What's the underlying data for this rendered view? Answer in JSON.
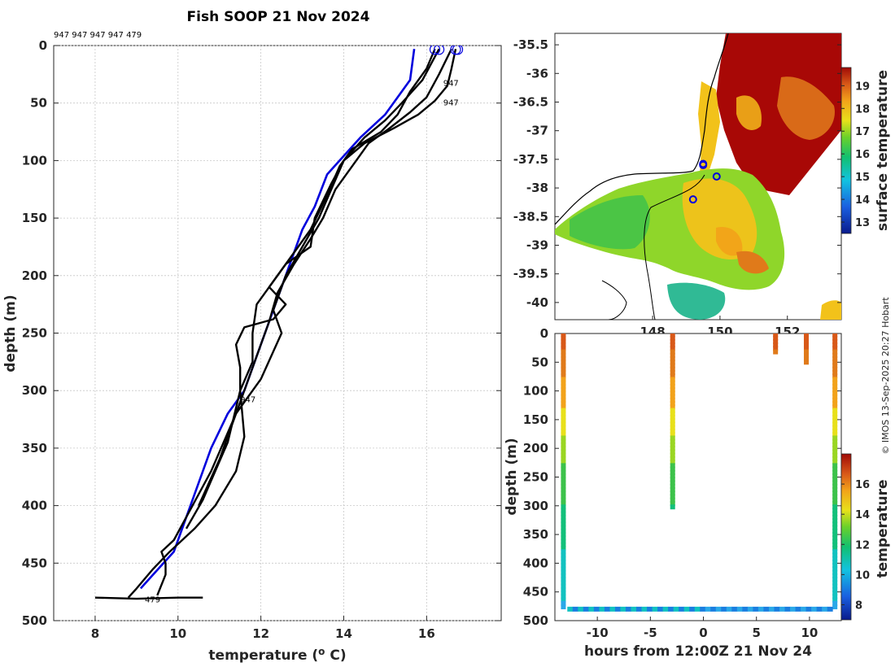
{
  "title": "Fish SOOP 21 Nov 2024",
  "credit": "© IMOS 13-Sep-2025 20:27 Hobart",
  "colors": {
    "climatology": "#0000dd",
    "profile": "#000000"
  },
  "chart_data": [
    {
      "id": "profiles",
      "type": "line",
      "header_label": "947 947 947 947 479",
      "xlabel": "temperature (o C)",
      "ylabel": "depth (m)",
      "xlim": [
        7,
        17.8
      ],
      "ylim": [
        500,
        0
      ],
      "x_ticks": [
        8,
        10,
        12,
        14,
        16
      ],
      "y_ticks": [
        0,
        50,
        100,
        150,
        200,
        250,
        300,
        350,
        400,
        450,
        500
      ],
      "grid": true,
      "annotations": [
        {
          "text": "947",
          "x": 16.4,
          "y": 35
        },
        {
          "text": "947",
          "x": 16.4,
          "y": 52
        },
        {
          "text": "947",
          "x": 11.5,
          "y": 310
        },
        {
          "text": "479",
          "x": 9.2,
          "y": 484
        }
      ],
      "series": [
        {
          "name": "climatology",
          "color": "#0000dd",
          "x": [
            15.7,
            15.6,
            15.0,
            14.4,
            13.9,
            13.6,
            13.3,
            13.0,
            12.6,
            12.3,
            11.9,
            11.6,
            11.2,
            10.8,
            10.3,
            9.9,
            9.4,
            9.1
          ],
          "y": [
            3,
            30,
            60,
            80,
            100,
            112,
            140,
            160,
            200,
            230,
            270,
            300,
            320,
            350,
            400,
            440,
            460,
            472
          ]
        },
        {
          "name": "xbt-1",
          "color": "#000000",
          "x": [
            16.7,
            16.6,
            16.5,
            16.2,
            15.8,
            15.2,
            14.5,
            14.0,
            13.7,
            13.3,
            13.2,
            12.6,
            12.2,
            12.6,
            12.3,
            11.6,
            11.4,
            11.5,
            11.5,
            11.6,
            11.4,
            10.9,
            10.4,
            9.8,
            9.4,
            9.0,
            8.8
          ],
          "y": [
            3,
            20,
            35,
            48,
            60,
            72,
            85,
            100,
            120,
            150,
            175,
            190,
            210,
            225,
            238,
            245,
            260,
            280,
            300,
            340,
            370,
            400,
            420,
            440,
            455,
            472,
            480
          ]
        },
        {
          "name": "xbt-2",
          "color": "#000000",
          "x": [
            16.2,
            16.0,
            15.6,
            15.3,
            14.9,
            14.2,
            13.9,
            13.6,
            13.2,
            12.8,
            12.3,
            11.9,
            11.8,
            11.8,
            11.5,
            11.2,
            10.6,
            10.2
          ],
          "y": [
            3,
            20,
            40,
            60,
            75,
            90,
            105,
            130,
            160,
            180,
            205,
            225,
            250,
            275,
            300,
            345,
            395,
            420
          ]
        },
        {
          "name": "xbt-3",
          "color": "#000000",
          "x": [
            16.3,
            15.9,
            15.4,
            15.0,
            14.5,
            14.0,
            13.7,
            13.4,
            13.0,
            12.6,
            12.3,
            12.5,
            12.0,
            11.4,
            11.0,
            10.5
          ],
          "y": [
            3,
            30,
            50,
            65,
            80,
            100,
            125,
            150,
            175,
            200,
            230,
            250,
            290,
            320,
            360,
            400
          ]
        },
        {
          "name": "xbt-4",
          "color": "#000000",
          "x": [
            16.6,
            16.3,
            16.0,
            15.6,
            15.1,
            14.6,
            14.3,
            13.8,
            13.5,
            13.2,
            12.8,
            12.4,
            12.2,
            11.9,
            11.4,
            10.8,
            10.2,
            9.9,
            9.6,
            9.7,
            9.7,
            9.5
          ],
          "y": [
            3,
            25,
            45,
            58,
            72,
            85,
            100,
            125,
            150,
            168,
            190,
            215,
            240,
            270,
            320,
            370,
            410,
            430,
            440,
            450,
            460,
            478
          ]
        },
        {
          "name": "bottom-spread",
          "color": "#000000",
          "x": [
            8.0,
            9.0,
            10.0,
            10.6
          ],
          "y": [
            480,
            481,
            480,
            480
          ]
        }
      ],
      "markers": {
        "shape": "circle",
        "color": "#0000dd",
        "x": [
          16.2,
          16.3,
          16.7,
          16.75
        ],
        "y": [
          2,
          2,
          2,
          2
        ]
      }
    },
    {
      "id": "sst-map",
      "type": "heatmap",
      "xlim": [
        145.1,
        153.6
      ],
      "ylim": [
        -40.3,
        -35.3
      ],
      "x_ticks": [
        148,
        150,
        152
      ],
      "y_ticks": [
        -35.5,
        -36,
        -36.5,
        -37,
        -37.5,
        -38,
        -38.5,
        -39,
        -39.5,
        -40
      ],
      "colorbar_label": "surface temperature",
      "colorbar_ticks": [
        13,
        14,
        15,
        16,
        17,
        18,
        19
      ],
      "colorbar_range": [
        12.5,
        19.8
      ],
      "stations": {
        "lon": [
          149.5,
          149.9,
          149.2,
          149.5
        ],
        "lat": [
          -37.6,
          -37.8,
          -38.2,
          -37.58
        ]
      }
    },
    {
      "id": "section",
      "type": "scatter",
      "xlabel": "hours from 12:00Z 21 Nov 24",
      "ylabel": "depth (m)",
      "xlim": [
        -14,
        13
      ],
      "ylim": [
        500,
        0
      ],
      "x_ticks": [
        -10,
        -5,
        0,
        5,
        10
      ],
      "y_ticks": [
        0,
        50,
        100,
        150,
        200,
        250,
        300,
        350,
        400,
        450,
        500
      ],
      "colorbar_label": "temperature",
      "colorbar_ticks": [
        8,
        10,
        12,
        14,
        16
      ],
      "colorbar_range": [
        7,
        18
      ],
      "casts": [
        {
          "hour": -13.2,
          "max_depth": 478
        },
        {
          "hour": -2.9,
          "max_depth": 306
        },
        {
          "hour": 6.8,
          "max_depth": 35
        },
        {
          "hour": 9.7,
          "max_depth": 50
        },
        {
          "hour": 12.4,
          "max_depth": 478
        }
      ],
      "bottom_run": {
        "hour_start": -12.6,
        "hour_end": 12.0,
        "depth": 480
      }
    }
  ]
}
